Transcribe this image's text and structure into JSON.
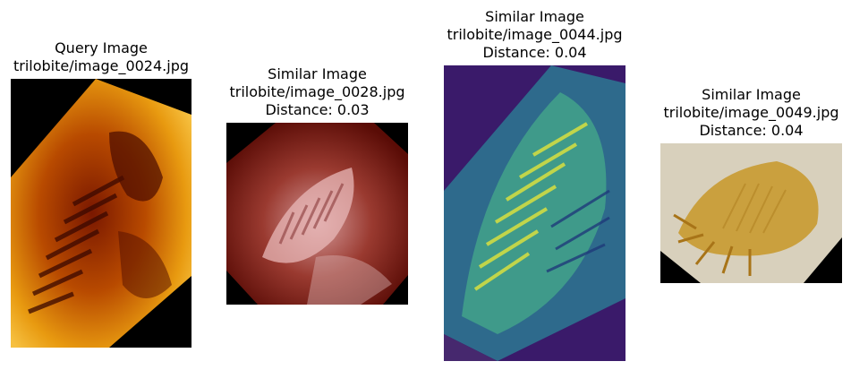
{
  "panels": [
    {
      "lines": [
        "Query Image",
        "trilobite/image_0024.jpg"
      ],
      "image": "trilobite-fossil-orange-heatmap"
    },
    {
      "lines": [
        "Similar Image",
        "trilobite/image_0028.jpg",
        "Distance: 0.03"
      ],
      "image": "trilobite-fossil-pink"
    },
    {
      "lines": [
        "Similar Image",
        "trilobite/image_0044.jpg",
        "Distance: 0.04"
      ],
      "image": "trilobite-fossil-viridis"
    },
    {
      "lines": [
        "Similar Image",
        "trilobite/image_0049.jpg",
        "Distance: 0.04"
      ],
      "image": "trilobite-fossil-yellow"
    }
  ]
}
